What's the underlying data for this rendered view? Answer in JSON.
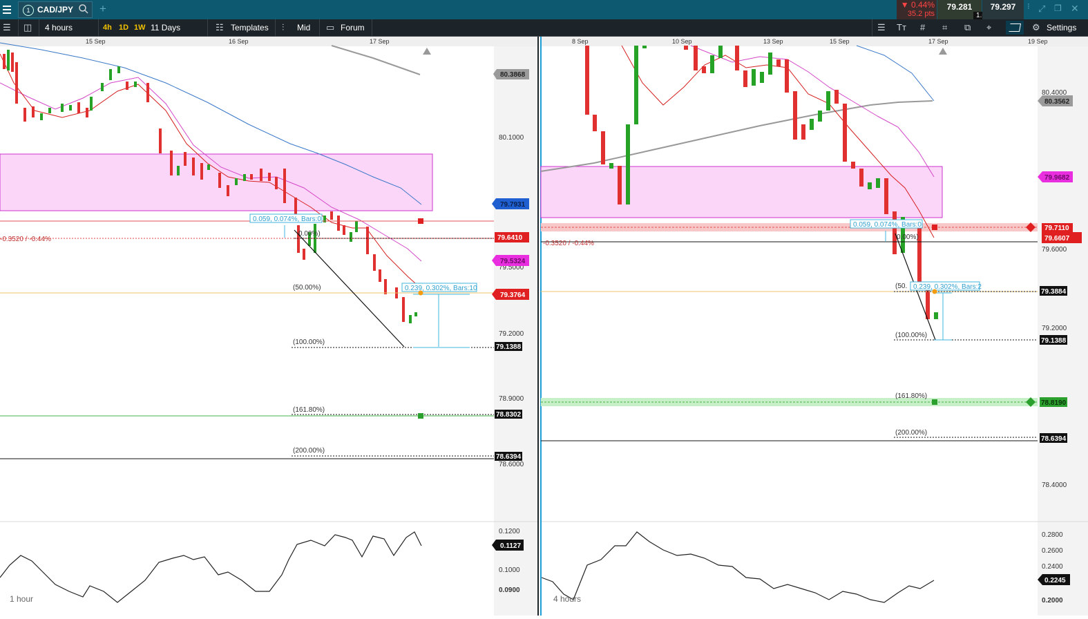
{
  "window": {
    "symbol": "CAD/JPY",
    "symbol_index": "1",
    "change_pct": "▼ 0.44%",
    "change_pts": "35.2 pts",
    "bid": "79.281",
    "spread": "1.6",
    "ask": "79.297"
  },
  "toolbar": {
    "interval": "4 hours",
    "chips": [
      "4h",
      "1D",
      "1W"
    ],
    "range": "11 Days",
    "templates_label": "Templates",
    "price_type_label": "Mid",
    "forum_label": "Forum",
    "settings_label": "Settings"
  },
  "left_chart": {
    "dates": [
      "15 Sep",
      "16 Sep",
      "17 Sep"
    ],
    "axis_labels": [
      "80.1000",
      "79.5000",
      "79.2000",
      "78.9000",
      "78.6000"
    ],
    "tags": {
      "ma200": "80.3868",
      "blue": "79.7931",
      "current": "79.6410",
      "pink": "79.5324",
      "fib50": "79.3764",
      "fib100": "79.1388",
      "fib161": "78.8302",
      "fib200": "78.6394"
    },
    "change_label": "-0.3520 / -0.44%",
    "measure1": "0.059, 0.074%, Bars:0",
    "measure2": "0.239, 0.302%, Bars:10",
    "fib_labels": [
      "0.00%)",
      "(50.00%)",
      "(100.00%)",
      "(161.80%)",
      "(200.00%)"
    ],
    "timeframe": "1 hour",
    "ind_axis": [
      "0.1200",
      "0.1000",
      "0.0900"
    ],
    "ind_tag": "0.1127"
  },
  "right_chart": {
    "dates": [
      "8 Sep",
      "10 Sep",
      "13 Sep",
      "15 Sep",
      "17 Sep",
      "19 Sep"
    ],
    "axis_labels": [
      "80.4000",
      "79.6000",
      "79.2000",
      "78.4000"
    ],
    "tags": {
      "ma200": "80.3562",
      "pink": "79.9682",
      "red_line": "79.7110",
      "current": "79.6607",
      "fib50": "79.3884",
      "fib100": "79.1388",
      "fib161": "78.8190",
      "fib200": "78.6394"
    },
    "change_label": "-0.3520 / -0.44%",
    "measure1": "0.059, 0.074%, Bars:0",
    "measure2": "0.239, 0.302%, Bars:2",
    "fib_labels": [
      "0.00%)",
      "(50.",
      "(100.00%)",
      "(161.80%)",
      "(200.00%)"
    ],
    "timeframe": "4 hours",
    "ind_axis": [
      "0.2800",
      "0.2600",
      "0.2400",
      "0.2000"
    ],
    "ind_tag": "0.2245"
  }
}
